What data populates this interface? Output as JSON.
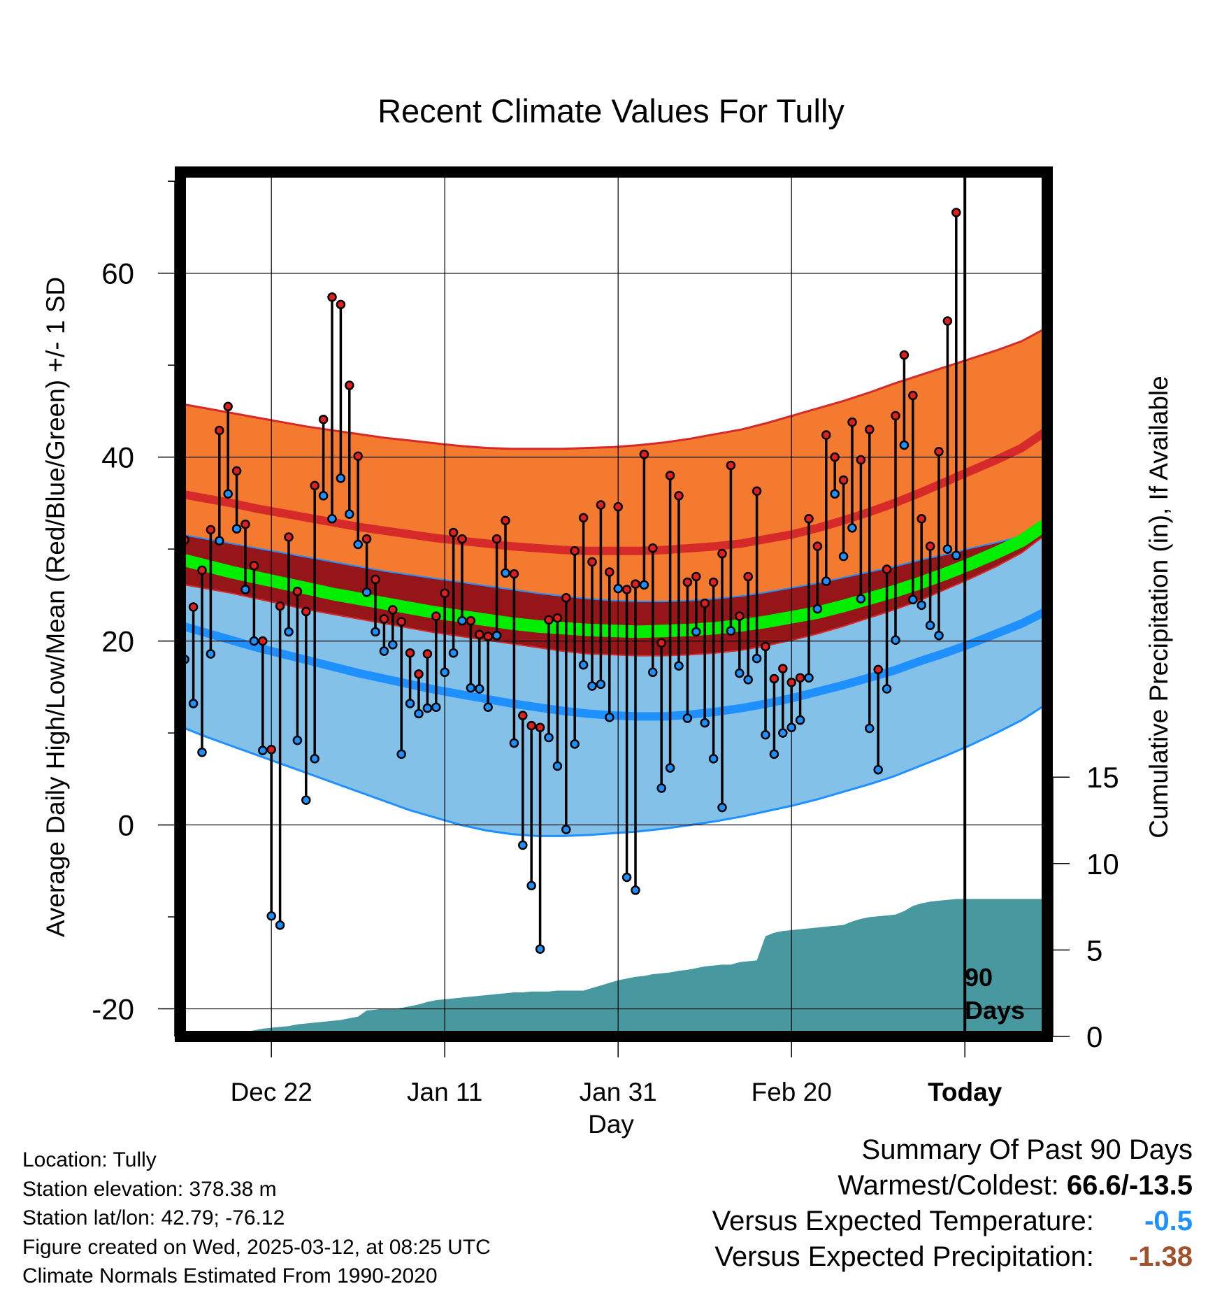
{
  "chart_data": {
    "type": "line",
    "title": "Recent Climate Values For Tully",
    "xlabel": "Day",
    "ylabel": "Average Daily High/Low/Mean (Red/Blue/Green) +/- 1 SD",
    "y2label": "Cumulative Precipitation (in), If Available",
    "x_tick_labels": [
      "Dec 22",
      "Jan 11",
      "Jan 31",
      "Feb 20",
      "Today"
    ],
    "x_tick_days": [
      10,
      30,
      50,
      70,
      90
    ],
    "xlim": [
      -0.5,
      99.5
    ],
    "ylim": [
      -23,
      71
    ],
    "y_ticks": [
      -20,
      0,
      20,
      40,
      60
    ],
    "y2lim": [
      0,
      50
    ],
    "y2_ticks": [
      0,
      5,
      10,
      15
    ],
    "today_marker": {
      "day": 90,
      "label_line1": "90",
      "label_line2": "Days"
    },
    "daily_highs": [
      31,
      23.7,
      27.7,
      32.1,
      42.9,
      45.5,
      38.5,
      32.7,
      28.2,
      20,
      8.2,
      23.8,
      31.3,
      25.4,
      23.2,
      36.9,
      44.1,
      57.4,
      56.6,
      47.8,
      40.1,
      31.1,
      26.7,
      22.4,
      23.4,
      22.1,
      18.7,
      16.4,
      18.6,
      22.7,
      25.2,
      31.8,
      31.1,
      22.2,
      20.7,
      20.5,
      31.1,
      33.1,
      27.3,
      11.9,
      10.8,
      10.6,
      22.3,
      22.5,
      24.7,
      29.8,
      33.4,
      28.6,
      34.8,
      27.5,
      34.6,
      25.6,
      26.2,
      40.3,
      30.1,
      19.8,
      38,
      35.8,
      26.4,
      27,
      24.1,
      26.4,
      29.5,
      39.1,
      22.7,
      27,
      36.3,
      19.4,
      15.9,
      17,
      15.5,
      16,
      33.3,
      30.3,
      42.4,
      40,
      37.5,
      43.8,
      39.7,
      43,
      16.9,
      27.8,
      44.5,
      51.1,
      46.7,
      33.3,
      30.3,
      40.6,
      54.8,
      66.6
    ],
    "daily_lows": [
      18,
      13.2,
      7.9,
      18.6,
      30.9,
      36,
      32.2,
      25.6,
      20,
      8.1,
      -9.9,
      -10.9,
      21,
      9.2,
      2.7,
      7.2,
      35.8,
      33.3,
      37.7,
      33.8,
      30.5,
      25.3,
      21,
      18.9,
      19.6,
      7.7,
      13.2,
      12.1,
      12.7,
      12.8,
      16.6,
      18.7,
      22.2,
      14.9,
      14.8,
      12.8,
      20.6,
      27.4,
      8.9,
      -2.2,
      -6.6,
      -13.5,
      9.5,
      6.4,
      -0.5,
      8.8,
      17.4,
      15.1,
      15.3,
      11.7,
      25.7,
      -5.7,
      -7.1,
      26.1,
      16.6,
      4,
      6.2,
      17.3,
      11.6,
      21,
      11.1,
      7.2,
      1.9,
      21.1,
      16.5,
      15.8,
      18.1,
      9.8,
      7.7,
      10,
      10.6,
      11.4,
      16,
      23.5,
      26.5,
      36,
      29.2,
      32.3,
      24.6,
      10.5,
      6,
      14.8,
      20.1,
      41.3,
      24.5,
      23.9,
      21.7,
      20.6,
      30,
      29.3
    ],
    "normals": {
      "high_mean": [
        36,
        35.5,
        35,
        34.4,
        33.9,
        33.4,
        32.9,
        32.4,
        32,
        31.6,
        31.2,
        30.9,
        30.6,
        30.3,
        30.1,
        29.9,
        29.8,
        29.8,
        29.8,
        29.9,
        30.1,
        30.3,
        30.6,
        31.1,
        31.6,
        32.3,
        33.1,
        34,
        35,
        36.1,
        37.3,
        38.5,
        39.7,
        41,
        42.9
      ],
      "high_sd_upper": [
        45.8,
        45.3,
        44.8,
        44.3,
        43.8,
        43.3,
        42.9,
        42.5,
        42.1,
        41.8,
        41.5,
        41.2,
        41,
        40.9,
        40.9,
        40.9,
        41,
        41.1,
        41.3,
        41.6,
        42,
        42.5,
        43,
        43.7,
        44.5,
        45.3,
        46.1,
        47,
        48,
        48.9,
        49.8,
        50.7,
        51.6,
        52.6,
        54.1
      ],
      "high_sd_lower": [
        26.2,
        25.7,
        25.2,
        24.6,
        24,
        23.4,
        22.9,
        22.4,
        21.9,
        21.4,
        20.9,
        20.5,
        20.1,
        19.7,
        19.3,
        18.9,
        18.6,
        18.5,
        18.4,
        18.4,
        18.5,
        18.7,
        19,
        19.5,
        20.1,
        20.8,
        21.6,
        22.5,
        23.4,
        24.4,
        25.6,
        26.8,
        28.1,
        29.6,
        31.7
      ],
      "mean_line": [
        28.9,
        28.2,
        27.5,
        26.9,
        26.3,
        25.7,
        25.1,
        24.6,
        24.1,
        23.6,
        23.1,
        22.7,
        22.3,
        21.9,
        21.6,
        21.4,
        21.2,
        21.1,
        21,
        21.1,
        21.2,
        21.4,
        21.7,
        22.1,
        22.6,
        23.1,
        23.8,
        24.6,
        25.4,
        26.3,
        27.3,
        28.4,
        29.6,
        30.9,
        32.8
      ],
      "low_mean": [
        21.7,
        20.9,
        20.1,
        19.3,
        18.6,
        17.9,
        17.2,
        16.5,
        15.9,
        15.3,
        14.7,
        14.2,
        13.7,
        13.2,
        12.8,
        12.4,
        12.1,
        11.9,
        11.8,
        11.8,
        12,
        12.3,
        12.7,
        13.2,
        13.8,
        14.5,
        15.2,
        16,
        16.8,
        17.8,
        18.7,
        19.7,
        20.8,
        21.9,
        23.3
      ],
      "low_sd_upper": [
        31.6,
        31.1,
        30.6,
        30.1,
        29.6,
        29.1,
        28.6,
        28.1,
        27.6,
        27.2,
        26.8,
        26.4,
        26,
        25.6,
        25.2,
        24.9,
        24.6,
        24.4,
        24.3,
        24.3,
        24.4,
        24.6,
        24.9,
        25.3,
        25.8,
        26.3,
        26.9,
        27.5,
        28.1,
        28.8,
        29.4,
        30.1,
        30.7,
        31.4,
        32.2
      ],
      "low_sd_lower": [
        10.7,
        9.6,
        8.6,
        7.6,
        6.6,
        5.6,
        4.6,
        3.6,
        2.6,
        1.6,
        0.8,
        0,
        -0.6,
        -1,
        -1.2,
        -1.2,
        -1.1,
        -0.9,
        -0.7,
        -0.4,
        0,
        0.4,
        0.9,
        1.5,
        2.1,
        2.8,
        3.6,
        4.4,
        5.3,
        6.4,
        7.5,
        8.7,
        10,
        11.4,
        13.2
      ]
    },
    "precipitation_cumulative": [
      0,
      0,
      0,
      0,
      0,
      0.1,
      0.15,
      0.25,
      0.35,
      0.45,
      0.5,
      0.55,
      0.6,
      0.7,
      0.75,
      0.8,
      0.85,
      0.9,
      0.95,
      1.05,
      1.15,
      1.5,
      1.55,
      1.6,
      1.6,
      1.65,
      1.75,
      1.85,
      2.0,
      2.1,
      2.15,
      2.2,
      2.25,
      2.3,
      2.35,
      2.4,
      2.45,
      2.5,
      2.55,
      2.55,
      2.6,
      2.6,
      2.6,
      2.65,
      2.65,
      2.65,
      2.65,
      2.8,
      2.95,
      3.1,
      3.25,
      3.35,
      3.45,
      3.5,
      3.6,
      3.65,
      3.7,
      3.8,
      3.85,
      3.95,
      4.05,
      4.1,
      4.15,
      4.15,
      4.3,
      4.35,
      4.4,
      5.8,
      6.0,
      6.1,
      6.15,
      6.2,
      6.25,
      6.3,
      6.35,
      6.4,
      6.45,
      6.65,
      6.8,
      6.9,
      6.95,
      7.0,
      7.05,
      7.25,
      7.55,
      7.7,
      7.8,
      7.85,
      7.9,
      7.95,
      7.95,
      7.95,
      7.95,
      7.95,
      7.95,
      7.95,
      7.95,
      7.95,
      7.95,
      7.95
    ],
    "colors": {
      "high_band": "#f47a2f",
      "high_line": "#d62a2a",
      "overlap_band": "#961518",
      "low_band": "#83c1e8",
      "low_line": "#1e90ff",
      "mean_line": "#00ee00",
      "precip": "#4898a0",
      "high_dot": "#e02020",
      "low_dot": "#1e90ff"
    }
  },
  "info": {
    "location": "Location: Tully",
    "elevation": "Station elevation: 378.38 m",
    "latlon": "Station lat/lon: 42.79; -76.12",
    "created": "Figure created on Wed, 2025-03-12, at 08:25 UTC",
    "normals": "Climate Normals Estimated From 1990-2020"
  },
  "summary": {
    "title": "Summary Of Past 90 Days",
    "warm_cold_label": "Warmest/Coldest: ",
    "warm_cold_value": "66.6/-13.5",
    "temp_label": "Versus Expected Temperature:",
    "temp_value": "-0.5",
    "temp_color": "#1e90ff",
    "precip_label": "Versus Expected Precipitation:",
    "precip_value": "-1.38",
    "precip_color": "#a0522d"
  }
}
